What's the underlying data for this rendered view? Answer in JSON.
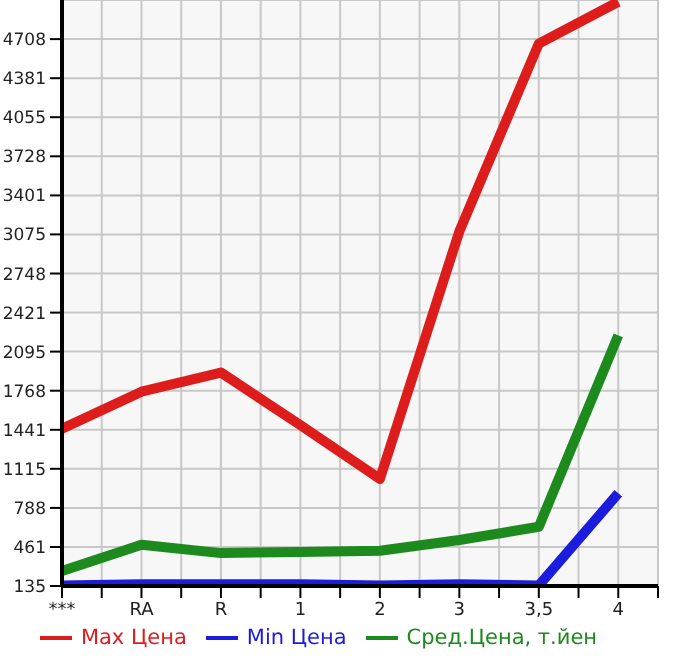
{
  "chart_data": {
    "type": "line",
    "categories": [
      "***",
      "RA",
      "R",
      "1",
      "2",
      "3",
      "3,5",
      "4"
    ],
    "series": [
      {
        "name": "Max Цена",
        "color": "#dd1c1c",
        "values": [
          1450,
          1760,
          1920,
          1480,
          1030,
          3100,
          4670,
          5020
        ]
      },
      {
        "name": "Min Цена",
        "color": "#1c1cdd",
        "values": [
          140,
          150,
          150,
          150,
          140,
          150,
          140,
          910
        ]
      },
      {
        "name": "Сред.Цена, т.йен",
        "color": "#1c8a1c",
        "values": [
          260,
          480,
          410,
          420,
          430,
          520,
          630,
          2230
        ]
      }
    ],
    "ylim": [
      135,
      5035
    ],
    "yticks": [
      135,
      461,
      788,
      1115,
      1441,
      1768,
      2095,
      2421,
      2748,
      3075,
      3401,
      3728,
      4055,
      4381,
      4708
    ],
    "grid": true,
    "legend": "bottom",
    "marker": "none",
    "line_style": "solid"
  }
}
